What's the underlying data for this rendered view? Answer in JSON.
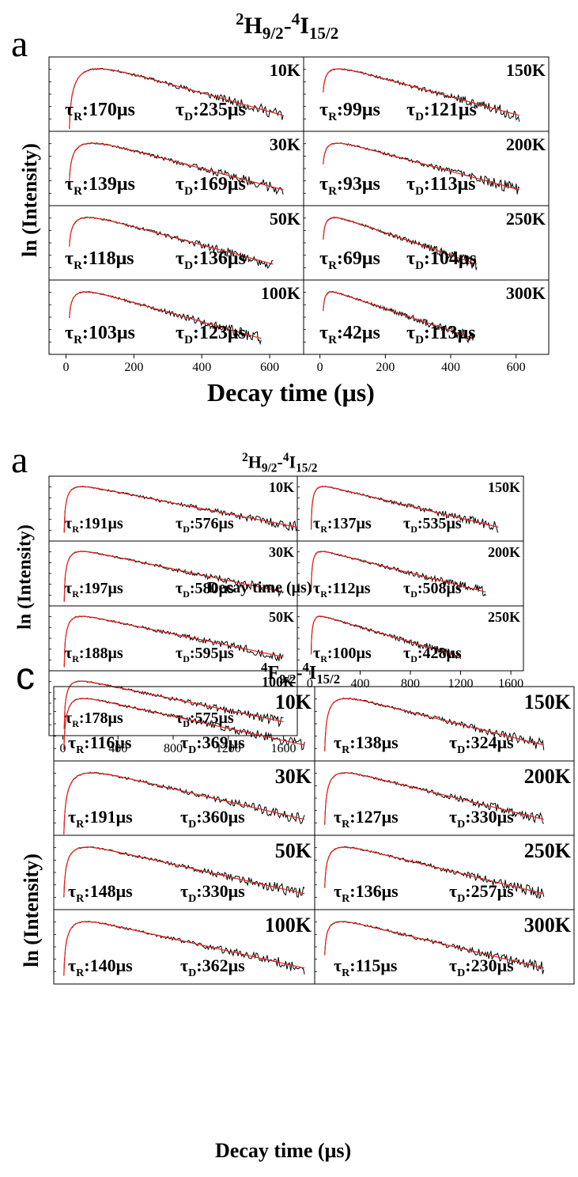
{
  "colors": {
    "data": "#000000",
    "fit": "#e8201a",
    "frame": "#000000"
  },
  "figures": [
    {
      "letter": "a",
      "transition": {
        "a": "2",
        "b": "H",
        "c": "9/2",
        "d": "-",
        "e": "4",
        "f": "I",
        "g": "15/2"
      },
      "ylabel": "ln (Intensity)",
      "xlabel": "Decay time (μs)",
      "xticks_left": [
        "0",
        "200",
        "400",
        "600"
      ],
      "xticks_right": [
        "0",
        "200",
        "400",
        "600"
      ]
    },
    {
      "letter": "a",
      "transition": {
        "a": "2",
        "b": "H",
        "c": "9/2",
        "d": "-",
        "e": "4",
        "f": "I",
        "g": "15/2"
      },
      "ylabel": "ln (Intensity)",
      "xlabel": "Decay time (μs)",
      "xticks_left": [
        "0",
        "400",
        "800",
        "1200",
        "1600"
      ],
      "xticks_right": [
        "0",
        "400",
        "800",
        "1200",
        "1600"
      ]
    },
    {
      "letter": "c",
      "transition": {
        "a": "4",
        "b": "F",
        "c": "9/2",
        "d": "-",
        "e": "4",
        "f": "I",
        "g": "15/2"
      },
      "ylabel": "ln (Intensity)",
      "xlabel": "Decay time (μs)",
      "xticks_left": [],
      "xticks_right": []
    }
  ],
  "chart_data": [
    {
      "type": "line",
      "title": "²H9/2-⁴I15/2",
      "xlabel": "Decay time (μs)",
      "ylabel": "ln (Intensity)",
      "xlim": [
        -50,
        700
      ],
      "panels": [
        {
          "temp": "10K",
          "tau_r": "τR:170μs",
          "tau_d": "τD:235μs",
          "rise_us": 170,
          "decay_us": 235,
          "tmax_us": 640
        },
        {
          "temp": "30K",
          "tau_r": "τR:139μs",
          "tau_d": "τD:169μs",
          "rise_us": 139,
          "decay_us": 169,
          "tmax_us": 640
        },
        {
          "temp": "50K",
          "tau_r": "τR:118μs",
          "tau_d": "τD:136μs",
          "rise_us": 118,
          "decay_us": 136,
          "tmax_us": 610
        },
        {
          "temp": "100K",
          "tau_r": "τR:103μs",
          "tau_d": "τD:123μs",
          "rise_us": 103,
          "decay_us": 123,
          "tmax_us": 575
        },
        {
          "temp": "150K",
          "tau_r": "τR:99μs",
          "tau_d": "τD:121μs",
          "rise_us": 99,
          "decay_us": 121,
          "tmax_us": 610
        },
        {
          "temp": "200K",
          "tau_r": "τR:93μs",
          "tau_d": "τD:113μs",
          "rise_us": 93,
          "decay_us": 113,
          "tmax_us": 610
        },
        {
          "temp": "250K",
          "tau_r": "τR:69μs",
          "tau_d": "τD:104μs",
          "rise_us": 69,
          "decay_us": 104,
          "tmax_us": 480
        },
        {
          "temp": "300K",
          "tau_r": "τR:42μs",
          "tau_d": "τD:113μs",
          "rise_us": 42,
          "decay_us": 113,
          "tmax_us": 470
        }
      ]
    },
    {
      "type": "line",
      "title": "²H9/2-⁴I15/2",
      "xlabel": "Decay time (μs)",
      "ylabel": "ln (Intensity)",
      "xlim": [
        -100,
        1700
      ],
      "panels": [
        {
          "temp": "10K",
          "tau_r": "τR:191μs",
          "tau_d": "τD:576μs",
          "rise_us": 191,
          "decay_us": 576,
          "tmax_us": 1700
        },
        {
          "temp": "30K",
          "tau_r": "τR:197μs",
          "tau_d": "τD:580μs",
          "rise_us": 197,
          "decay_us": 580,
          "tmax_us": 1600
        },
        {
          "temp": "50K",
          "tau_r": "τR:188μs",
          "tau_d": "τD:595μs",
          "rise_us": 188,
          "decay_us": 595,
          "tmax_us": 1600
        },
        {
          "temp": "100K",
          "tau_r": "τR:178μs",
          "tau_d": "τD:575μs",
          "rise_us": 178,
          "decay_us": 575,
          "tmax_us": 1600
        },
        {
          "temp": "150K",
          "tau_r": "τR:137μs",
          "tau_d": "τD:535μs",
          "rise_us": 137,
          "decay_us": 535,
          "tmax_us": 1500
        },
        {
          "temp": "200K",
          "tau_r": "τR:112μs",
          "tau_d": "τD:508μs",
          "rise_us": 112,
          "decay_us": 508,
          "tmax_us": 1400
        },
        {
          "temp": "250K",
          "tau_r": "τR:100μs",
          "tau_d": "τD:428μs",
          "rise_us": 100,
          "decay_us": 428,
          "tmax_us": 1200
        }
      ]
    },
    {
      "type": "line",
      "title": "⁴F9/2-⁴I15/2",
      "xlabel": "Decay time (μs)",
      "ylabel": "ln (Intensity)",
      "panels": [
        {
          "temp": "10K",
          "tau_r": "τR:116μs",
          "tau_d": "τD:369μs",
          "rise_us": 116,
          "decay_us": 369
        },
        {
          "temp": "30K",
          "tau_r": "τR:191μs",
          "tau_d": "τD:360μs",
          "rise_us": 191,
          "decay_us": 360
        },
        {
          "temp": "50K",
          "tau_r": "τR:148μs",
          "tau_d": "τD:330μs",
          "rise_us": 148,
          "decay_us": 330
        },
        {
          "temp": "100K",
          "tau_r": "τR:140μs",
          "tau_d": "τD:362μs",
          "rise_us": 140,
          "decay_us": 362
        },
        {
          "temp": "150K",
          "tau_r": "τR:138μs",
          "tau_d": "τD:324μs",
          "rise_us": 138,
          "decay_us": 324
        },
        {
          "temp": "200K",
          "tau_r": "τR:127μs",
          "tau_d": "τD:330μs",
          "rise_us": 127,
          "decay_us": 330
        },
        {
          "temp": "250K",
          "tau_r": "τR:136μs",
          "tau_d": "τD:257μs",
          "rise_us": 136,
          "decay_us": 257
        },
        {
          "temp": "300K",
          "tau_r": "τR:115μs",
          "tau_d": "τD:230μs",
          "rise_us": 115,
          "decay_us": 230
        }
      ]
    }
  ]
}
